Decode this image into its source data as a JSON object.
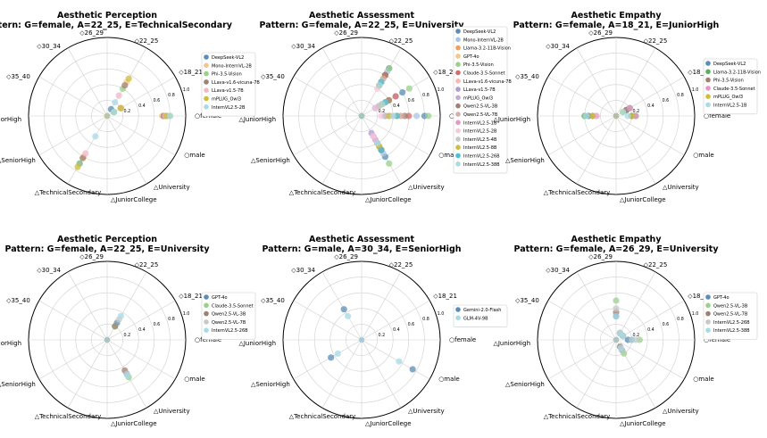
{
  "chart_data": [
    {
      "type": "scatter",
      "subtype": "polar",
      "title": "Aesthetic Perception",
      "subtitle": "Pattern: G=female, A=22_25, E=TechnicalSecondary",
      "axes": [
        "○female",
        "◇18_21",
        "◇22_25",
        "◇26_29",
        "◇30_34",
        "◇35_40",
        "△JuniorHigh",
        "△SeniorHigh",
        "△TechnicalSecondary",
        "△JuniorCollege",
        "△University",
        "○male"
      ],
      "rlim": [
        0,
        1.0
      ],
      "rticks": [
        "0.2",
        "0.4",
        "0.6",
        "0.8",
        "1.0"
      ],
      "legend_position": "right",
      "series": [
        {
          "name": "DeepSeek-VL2",
          "color": "#5b8db8",
          "values": [
            0.75,
            0.1,
            0.1,
            0.05,
            0.05,
            0.05,
            0.05,
            0.05,
            0.7,
            0.05,
            0.05,
            0.05
          ]
        },
        {
          "name": "Mono-InternVL-2B",
          "color": "#f5c58a",
          "values": [
            0.7,
            0.1,
            0.5,
            0.05,
            0.05,
            0.05,
            0.05,
            0.05,
            0.6,
            0.05,
            0.05,
            0.05
          ]
        },
        {
          "name": "Phi-3.5-Vision",
          "color": "#9ccf8e",
          "values": [
            0.8,
            0.1,
            0.4,
            0.05,
            0.05,
            0.05,
            0.05,
            0.05,
            0.7,
            0.05,
            0.05,
            0.05
          ]
        },
        {
          "name": "LLava-v1.6-vicuna-7B",
          "color": "#a08070",
          "values": [
            0.72,
            0.2,
            0.45,
            0.05,
            0.05,
            0.05,
            0.05,
            0.05,
            0.62,
            0.05,
            0.05,
            0.05
          ]
        },
        {
          "name": "LLava-v1.5-7B",
          "color": "#f0b8c8",
          "values": [
            0.74,
            0.2,
            0.3,
            0.05,
            0.05,
            0.05,
            0.05,
            0.05,
            0.55,
            0.05,
            0.05,
            0.05
          ]
        },
        {
          "name": "mPLUG_Owl3",
          "color": "#cdbf3c",
          "values": [
            0.76,
            0.2,
            0.55,
            0.05,
            0.05,
            0.05,
            0.05,
            0.05,
            0.75,
            0.05,
            0.05,
            0.05
          ]
        },
        {
          "name": "InternVL2.5-2B",
          "color": "#a7dbe6",
          "values": [
            0.8,
            0.1,
            0.2,
            0.05,
            0.05,
            0.05,
            0.05,
            0.05,
            0.3,
            0.05,
            0.05,
            0.05
          ]
        }
      ]
    },
    {
      "type": "scatter",
      "subtype": "polar",
      "title": "Aesthetic Assessment",
      "subtitle": "Pattern: G=female, A=22_25, E=University",
      "axes": [
        "○female",
        "◇18_21",
        "◇22_25",
        "◇26_29",
        "◇30_34",
        "◇35_40",
        "△JuniorHigh",
        "△SeniorHigh",
        "△TechnicalSecondary",
        "△JuniorCollege",
        "△University",
        "○male"
      ],
      "rlim": [
        0,
        1.0
      ],
      "rticks": [
        "0.2",
        "0.4",
        "0.6",
        "0.8",
        "1.0"
      ],
      "legend_position": "right",
      "series": [
        {
          "name": "DeepSeek-VL2",
          "color": "#5b8db8",
          "values": [
            0.8,
            0.6,
            0.7,
            0.05,
            0.05,
            0.05,
            0.05,
            0.05,
            0.05,
            0.05,
            0.6,
            0.05
          ]
        },
        {
          "name": "Mono-InternVL-2B",
          "color": "#a9c4e2",
          "values": [
            0.7,
            0.5,
            0.65,
            0.05,
            0.05,
            0.05,
            0.05,
            0.05,
            0.05,
            0.05,
            0.55,
            0.05
          ]
        },
        {
          "name": "Llama-3.2-11B-Vision",
          "color": "#f0a050",
          "values": [
            0.45,
            0.4,
            0.6,
            0.05,
            0.05,
            0.05,
            0.05,
            0.05,
            0.05,
            0.05,
            0.5,
            0.05
          ]
        },
        {
          "name": "GPT-4o",
          "color": "#f5c58a",
          "values": [
            0.5,
            0.3,
            0.55,
            0.05,
            0.05,
            0.05,
            0.05,
            0.05,
            0.05,
            0.05,
            0.45,
            0.05
          ]
        },
        {
          "name": "Phi-3.5-Vision",
          "color": "#9ccf8e",
          "values": [
            0.85,
            0.7,
            0.7,
            0.05,
            0.05,
            0.05,
            0.05,
            0.05,
            0.05,
            0.05,
            0.7,
            0.05
          ]
        },
        {
          "name": "Claude-3.5-Sonnet",
          "color": "#d86a6a",
          "values": [
            0.6,
            0.5,
            0.6,
            0.05,
            0.05,
            0.05,
            0.05,
            0.05,
            0.05,
            0.05,
            0.4,
            0.05
          ]
        },
        {
          "name": "LLava-v1.6-vicuna-7B",
          "color": "#f5b8b8",
          "values": [
            0.4,
            0.3,
            0.5,
            0.05,
            0.05,
            0.05,
            0.05,
            0.05,
            0.05,
            0.05,
            0.3,
            0.05
          ]
        },
        {
          "name": "LLava-v1.5-7B",
          "color": "#b39ad4",
          "values": [
            0.3,
            0.2,
            0.45,
            0.05,
            0.05,
            0.05,
            0.05,
            0.05,
            0.05,
            0.05,
            0.25,
            0.05
          ]
        },
        {
          "name": "mPLUG_Owl3",
          "color": "#c7a9d6",
          "values": [
            0.35,
            0.3,
            0.5,
            0.05,
            0.05,
            0.05,
            0.05,
            0.05,
            0.05,
            0.05,
            0.3,
            0.05
          ]
        },
        {
          "name": "Qwen2.5-VL-3B",
          "color": "#a08070",
          "values": [
            0.55,
            0.4,
            0.6,
            0.05,
            0.05,
            0.05,
            0.05,
            0.05,
            0.05,
            0.05,
            0.5,
            0.05
          ]
        },
        {
          "name": "Qwen2.5-VL-7B",
          "color": "#d3b0a8",
          "values": [
            0.5,
            0.35,
            0.55,
            0.05,
            0.05,
            0.05,
            0.05,
            0.05,
            0.05,
            0.05,
            0.45,
            0.05
          ]
        },
        {
          "name": "InternVL2.5-1B",
          "color": "#e896c8",
          "values": [
            0.3,
            0.25,
            0.45,
            0.05,
            0.05,
            0.05,
            0.05,
            0.05,
            0.05,
            0.05,
            0.35,
            0.05
          ]
        },
        {
          "name": "InternVL2.5-2B",
          "color": "#f5c8dc",
          "values": [
            0.25,
            0.2,
            0.4,
            0.05,
            0.05,
            0.05,
            0.05,
            0.05,
            0.05,
            0.05,
            0.3,
            0.05
          ]
        },
        {
          "name": "InternVL2.5-4B",
          "color": "#c8c8c8",
          "values": [
            0.3,
            0.25,
            0.5,
            0.05,
            0.05,
            0.05,
            0.05,
            0.05,
            0.05,
            0.05,
            0.4,
            0.05
          ]
        },
        {
          "name": "InternVL2.5-8B",
          "color": "#cdbf3c",
          "values": [
            0.35,
            0.3,
            0.45,
            0.05,
            0.05,
            0.05,
            0.05,
            0.05,
            0.05,
            0.05,
            0.45,
            0.05
          ]
        },
        {
          "name": "InternVL2.5-26B",
          "color": "#4ec0d4",
          "values": [
            0.45,
            0.35,
            0.5,
            0.05,
            0.05,
            0.05,
            0.05,
            0.05,
            0.05,
            0.05,
            0.5,
            0.05
          ]
        },
        {
          "name": "InternVL2.5-38B",
          "color": "#a7dbe6",
          "values": [
            0.4,
            0.3,
            0.45,
            0.05,
            0.05,
            0.05,
            0.05,
            0.05,
            0.05,
            0.05,
            0.4,
            0.05
          ]
        }
      ]
    },
    {
      "type": "scatter",
      "subtype": "polar",
      "title": "Aesthetic Empathy",
      "subtitle": "Pattern: G=female, A=18_21, E=JuniorHigh",
      "axes": [
        "○female",
        "◇18_21",
        "◇22_25",
        "◇26_29",
        "◇30_34",
        "◇35_40",
        "△JuniorHigh",
        "△SeniorHigh",
        "△TechnicalSecondary",
        "△JuniorCollege",
        "△University",
        "○male"
      ],
      "rlim": [
        0,
        1.0
      ],
      "rticks": [
        "0.2",
        "0.4",
        "0.6",
        "0.8",
        "1.0"
      ],
      "legend_position": "right",
      "series": [
        {
          "name": "DeepSeek-VL2",
          "color": "#5b8db8",
          "values": [
            0.2,
            0.15,
            0.05,
            0.05,
            0.05,
            0.05,
            0.35,
            0.05,
            0.05,
            0.05,
            0.05,
            0.05
          ]
        },
        {
          "name": "Llama-3.2-11B-Vision",
          "color": "#5fae5f",
          "values": [
            0.25,
            0.2,
            0.05,
            0.05,
            0.05,
            0.05,
            0.4,
            0.05,
            0.05,
            0.05,
            0.05,
            0.05
          ]
        },
        {
          "name": "Phi-3.5-Vision",
          "color": "#a08070",
          "values": [
            0.2,
            0.15,
            0.05,
            0.05,
            0.05,
            0.05,
            0.3,
            0.05,
            0.05,
            0.05,
            0.05,
            0.05
          ]
        },
        {
          "name": "Claude-3.5-Sonnet",
          "color": "#e896c8",
          "values": [
            0.25,
            0.2,
            0.05,
            0.05,
            0.05,
            0.05,
            0.25,
            0.05,
            0.05,
            0.05,
            0.05,
            0.05
          ]
        },
        {
          "name": "mPLUG_Owl3",
          "color": "#cdbf3c",
          "values": [
            0.2,
            0.1,
            0.05,
            0.05,
            0.05,
            0.05,
            0.3,
            0.05,
            0.05,
            0.05,
            0.05,
            0.05
          ]
        },
        {
          "name": "InternVL2.5-1B",
          "color": "#a7dbe6",
          "values": [
            0.15,
            0.1,
            0.05,
            0.05,
            0.05,
            0.05,
            0.38,
            0.05,
            0.05,
            0.05,
            0.05,
            0.05
          ]
        }
      ]
    },
    {
      "type": "scatter",
      "subtype": "polar",
      "title": "Aesthetic Perception",
      "subtitle": "Pattern: G=female, A=22_25, E=University",
      "axes": [
        "○female",
        "◇18_21",
        "◇22_25",
        "◇26_29",
        "◇30_34",
        "◇35_40",
        "△JuniorHigh",
        "△SeniorHigh",
        "△TechnicalSecondary",
        "△JuniorCollege",
        "△University",
        "○male"
      ],
      "rlim": [
        0,
        1.0
      ],
      "rticks": [
        "0.2",
        "0.4",
        "0.6",
        "0.8",
        "1.0"
      ],
      "legend_position": "right",
      "series": [
        {
          "name": "GPT-4o",
          "color": "#5b8db8",
          "values": [
            0.05,
            0.05,
            0.25,
            0.05,
            0.05,
            0.05,
            0.05,
            0.05,
            0.05,
            0.05,
            0.5,
            0.05
          ]
        },
        {
          "name": "Claude-3.5-Sonnet",
          "color": "#9ccf8e",
          "values": [
            0.05,
            0.05,
            0.2,
            0.05,
            0.05,
            0.05,
            0.05,
            0.05,
            0.05,
            0.05,
            0.55,
            0.05
          ]
        },
        {
          "name": "Qwen2.5-VL-3B",
          "color": "#a08070",
          "values": [
            0.05,
            0.05,
            0.2,
            0.05,
            0.05,
            0.05,
            0.05,
            0.05,
            0.05,
            0.05,
            0.45,
            0.05
          ]
        },
        {
          "name": "Qwen2.5-VL-7B",
          "color": "#c8c8c8",
          "values": [
            0.05,
            0.05,
            0.3,
            0.05,
            0.05,
            0.05,
            0.05,
            0.05,
            0.05,
            0.05,
            0.5,
            0.05
          ]
        },
        {
          "name": "InternVL2.5-26B",
          "color": "#a7dbe6",
          "values": [
            0.05,
            0.05,
            0.35,
            0.05,
            0.05,
            0.05,
            0.05,
            0.05,
            0.05,
            0.05,
            0.52,
            0.05
          ]
        }
      ]
    },
    {
      "type": "scatter",
      "subtype": "polar",
      "title": "Aesthetic Assessment",
      "subtitle": "Pattern: G=male, A=30_34, E=SeniorHigh",
      "axes": [
        "○female",
        "◇18_21",
        "◇22_25",
        "◇26_29",
        "◇30_34",
        "◇35_40",
        "△JuniorHigh",
        "△SeniorHigh",
        "△TechnicalSecondary",
        "△JuniorCollege",
        "△University",
        "○male"
      ],
      "rlim": [
        0,
        1.0
      ],
      "rticks": [
        "0.2",
        "0.4",
        "0.6",
        "0.8",
        "1.0"
      ],
      "legend_position": "right",
      "series": [
        {
          "name": "Gemini-2.0-Flash",
          "color": "#5b8db8",
          "values": [
            0.05,
            0.05,
            0.05,
            0.05,
            0.45,
            0.05,
            0.05,
            0.45,
            0.05,
            0.05,
            0.05,
            0.75
          ]
        },
        {
          "name": "GLM-4V-9B",
          "color": "#a7dbe6",
          "values": [
            0.05,
            0.05,
            0.05,
            0.05,
            0.35,
            0.05,
            0.05,
            0.35,
            0.05,
            0.05,
            0.05,
            0.55
          ]
        }
      ]
    },
    {
      "type": "scatter",
      "subtype": "polar",
      "title": "Aesthetic Empathy",
      "subtitle": "Pattern: G=female, A=26_29, E=University",
      "axes": [
        "○female",
        "◇18_21",
        "◇22_25",
        "◇26_29",
        "◇30_34",
        "◇35_40",
        "△JuniorHigh",
        "△SeniorHigh",
        "△TechnicalSecondary",
        "△JuniorCollege",
        "△University",
        "○male"
      ],
      "rlim": [
        0,
        1.0
      ],
      "rticks": [
        "0.2",
        "0.4",
        "0.6",
        "0.8",
        "1.0"
      ],
      "legend_position": "right",
      "series": [
        {
          "name": "GPT-4o",
          "color": "#5b8db8",
          "values": [
            0.15,
            0.1,
            0.1,
            0.3,
            0.05,
            0.05,
            0.05,
            0.05,
            0.05,
            0.05,
            0.15,
            0.05
          ]
        },
        {
          "name": "Qwen2.5-VL-3B",
          "color": "#9ccf8e",
          "values": [
            0.3,
            0.1,
            0.1,
            0.5,
            0.05,
            0.05,
            0.05,
            0.05,
            0.05,
            0.05,
            0.2,
            0.05
          ]
        },
        {
          "name": "Qwen2.5-VL-7B",
          "color": "#a08070",
          "values": [
            0.2,
            0.1,
            0.1,
            0.35,
            0.05,
            0.05,
            0.05,
            0.05,
            0.05,
            0.05,
            0.1,
            0.05
          ]
        },
        {
          "name": "InternVL2.5-26B",
          "color": "#c8c8c8",
          "values": [
            0.25,
            0.1,
            0.1,
            0.4,
            0.05,
            0.05,
            0.05,
            0.05,
            0.05,
            0.05,
            0.15,
            0.05
          ]
        },
        {
          "name": "InternVL2.5-38B",
          "color": "#a7dbe6",
          "values": [
            0.2,
            0.1,
            0.1,
            0.3,
            0.05,
            0.05,
            0.05,
            0.05,
            0.05,
            0.05,
            0.12,
            0.05
          ]
        }
      ]
    }
  ]
}
